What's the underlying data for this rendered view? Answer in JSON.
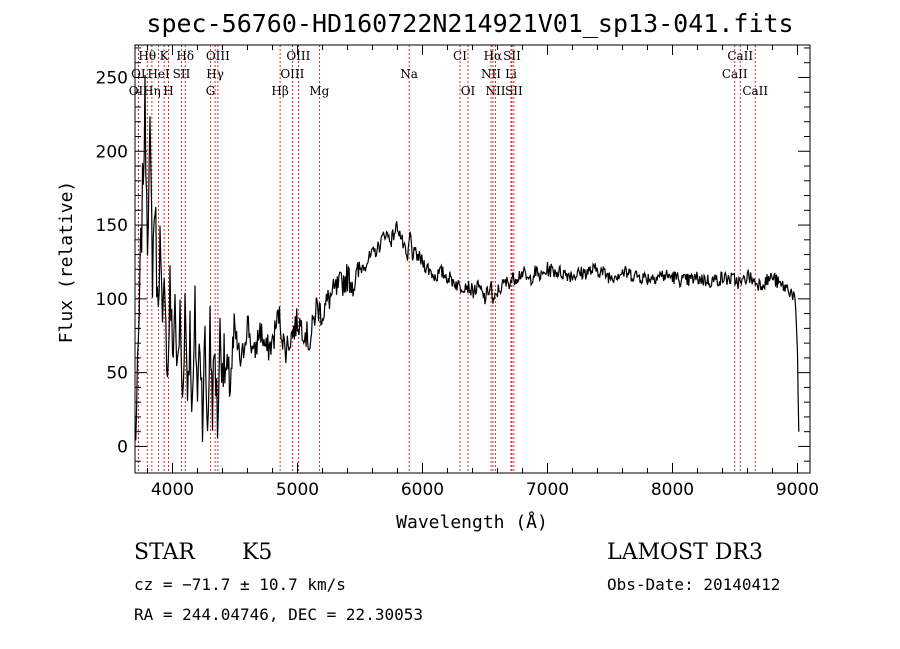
{
  "chart_data": {
    "type": "line",
    "title": "spec-56760-HD160722N214921V01_sp13-041.fits",
    "xlabel": "Wavelength (Å)",
    "ylabel": "Flux (relative)",
    "xlim": [
      3700,
      9100
    ],
    "ylim": [
      -18,
      272
    ],
    "xticks": [
      4000,
      5000,
      6000,
      7000,
      8000,
      9000
    ],
    "yticks": [
      0,
      50,
      100,
      150,
      200,
      250
    ],
    "series": [
      {
        "name": "flux",
        "x": [
          3700,
          3720,
          3740,
          3760,
          3780,
          3800,
          3820,
          3840,
          3860,
          3880,
          3900,
          3920,
          3940,
          3960,
          3980,
          4000,
          4020,
          4040,
          4060,
          4080,
          4100,
          4120,
          4140,
          4160,
          4180,
          4200,
          4220,
          4240,
          4260,
          4280,
          4300,
          4320,
          4340,
          4360,
          4380,
          4400,
          4450,
          4500,
          4550,
          4600,
          4650,
          4700,
          4750,
          4800,
          4850,
          4900,
          4950,
          5000,
          5050,
          5100,
          5150,
          5200,
          5250,
          5300,
          5350,
          5400,
          5450,
          5500,
          5550,
          5600,
          5650,
          5700,
          5750,
          5800,
          5850,
          5880,
          5900,
          5920,
          5950,
          6000,
          6050,
          6100,
          6150,
          6200,
          6250,
          6300,
          6350,
          6400,
          6450,
          6500,
          6550,
          6563,
          6580,
          6600,
          6650,
          6700,
          6750,
          6800,
          6850,
          6900,
          6950,
          7000,
          7100,
          7200,
          7300,
          7400,
          7500,
          7600,
          7700,
          7800,
          7900,
          8000,
          8100,
          8200,
          8300,
          8400,
          8500,
          8550,
          8600,
          8650,
          8700,
          8750,
          8800,
          8850,
          8900,
          8950,
          8980,
          9000,
          9010
        ],
        "y": [
          0,
          40,
          110,
          170,
          230,
          150,
          205,
          120,
          170,
          95,
          140,
          70,
          120,
          40,
          110,
          60,
          100,
          45,
          90,
          30,
          100,
          40,
          80,
          20,
          90,
          35,
          75,
          25,
          70,
          10,
          80,
          30,
          65,
          15,
          75,
          60,
          40,
          75,
          55,
          85,
          60,
          80,
          65,
          70,
          90,
          65,
          75,
          85,
          80,
          70,
          95,
          90,
          100,
          105,
          110,
          115,
          110,
          120,
          125,
          130,
          135,
          145,
          140,
          150,
          135,
          125,
          145,
          130,
          130,
          125,
          120,
          115,
          118,
          115,
          112,
          108,
          110,
          105,
          108,
          100,
          110,
          95,
          100,
          105,
          110,
          112,
          115,
          118,
          112,
          118,
          115,
          120,
          118,
          116,
          118,
          120,
          115,
          118,
          116,
          114,
          116,
          115,
          112,
          114,
          112,
          114,
          113,
          110,
          116,
          112,
          110,
          112,
          115,
          110,
          108,
          105,
          100,
          60,
          10
        ]
      }
    ],
    "line_markers": [
      {
        "label": "Hθ",
        "x": 3798,
        "row": 1
      },
      {
        "label": "K",
        "x": 3933,
        "row": 1
      },
      {
        "label": "Hδ",
        "x": 4102,
        "row": 1
      },
      {
        "label": "OIII",
        "x": 4363,
        "row": 1
      },
      {
        "label": "OIII",
        "x": 5007,
        "row": 1
      },
      {
        "label": "CI",
        "x": 6300,
        "row": 1
      },
      {
        "label": "Hα",
        "x": 6563,
        "row": 1
      },
      {
        "label": "SII",
        "x": 6716,
        "row": 1
      },
      {
        "label": "CaII",
        "x": 8542,
        "row": 1
      },
      {
        "label": "OI",
        "x": 3727,
        "row": 2
      },
      {
        "label": "HeI",
        "x": 3889,
        "row": 2
      },
      {
        "label": "SII",
        "x": 4072,
        "row": 2
      },
      {
        "label": "Hγ",
        "x": 4341,
        "row": 2
      },
      {
        "label": "OIII",
        "x": 4959,
        "row": 2
      },
      {
        "label": "Na",
        "x": 5893,
        "row": 2
      },
      {
        "label": "NII",
        "x": 6548,
        "row": 2
      },
      {
        "label": "Li",
        "x": 6708,
        "row": 2
      },
      {
        "label": "CaII",
        "x": 8498,
        "row": 2
      },
      {
        "label": "OII",
        "x": 3727,
        "row": 3
      },
      {
        "label": "Hη",
        "x": 3835,
        "row": 3
      },
      {
        "label": "H",
        "x": 3968,
        "row": 3
      },
      {
        "label": "G",
        "x": 4304,
        "row": 3
      },
      {
        "label": "Hβ",
        "x": 4861,
        "row": 3
      },
      {
        "label": "Mg",
        "x": 5175,
        "row": 3
      },
      {
        "label": "OI",
        "x": 6364,
        "row": 3
      },
      {
        "label": "NII",
        "x": 6584,
        "row": 3
      },
      {
        "label": "SII",
        "x": 6731,
        "row": 3
      },
      {
        "label": "CaII",
        "x": 8662,
        "row": 3
      }
    ],
    "marker_color": "#cc0000"
  },
  "info": {
    "object_type": "STAR",
    "subclass": "K5",
    "survey": "LAMOST DR3",
    "cz": "cz = −71.7 ± 10.7 km/s",
    "obs_date": "Obs-Date: 20140412",
    "coords": "RA = 244.04746, DEC =  22.30053"
  }
}
